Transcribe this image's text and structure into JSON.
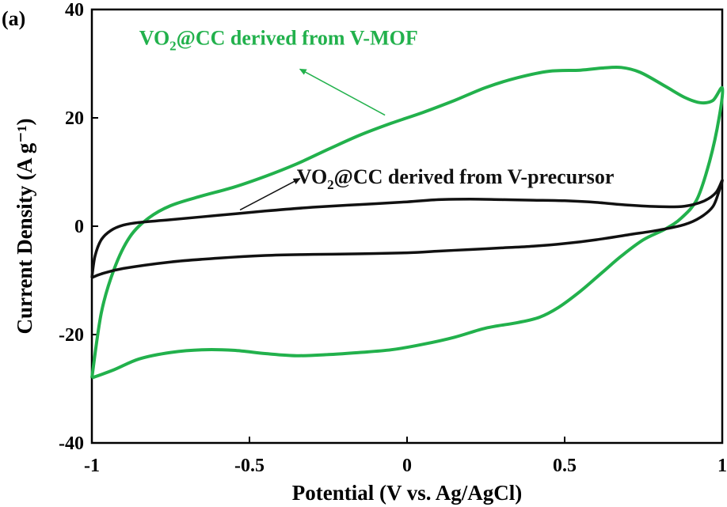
{
  "chart_data": {
    "type": "line",
    "panel_label": "(a)",
    "xlabel": "Potential (V vs. Ag/AgCl)",
    "ylabel": "Current Density (A g⁻¹)",
    "xlim": [
      -1,
      1
    ],
    "ylim": [
      -40,
      40
    ],
    "x_ticks": [
      -1,
      -0.5,
      0,
      0.5,
      1
    ],
    "y_ticks": [
      -40,
      -20,
      0,
      20,
      40
    ],
    "x_tick_labels": [
      "-1",
      "-0.5",
      "0",
      "0.5",
      "1"
    ],
    "y_tick_labels": [
      "-40",
      "-20",
      "0",
      "20",
      "40"
    ],
    "grid": false,
    "series": [
      {
        "name": "VO₂@CC derived from V-MOF",
        "color": "#22b14c",
        "closed": true,
        "points": [
          [
            -1.0,
            -28
          ],
          [
            -0.97,
            -16
          ],
          [
            -0.93,
            -8
          ],
          [
            -0.88,
            -2
          ],
          [
            -0.82,
            1.5
          ],
          [
            -0.75,
            3.8
          ],
          [
            -0.65,
            5.6
          ],
          [
            -0.55,
            7.2
          ],
          [
            -0.45,
            9.2
          ],
          [
            -0.35,
            11.5
          ],
          [
            -0.25,
            14.2
          ],
          [
            -0.15,
            16.8
          ],
          [
            -0.05,
            19.0
          ],
          [
            0.05,
            21.0
          ],
          [
            0.15,
            23.2
          ],
          [
            0.25,
            25.6
          ],
          [
            0.35,
            27.4
          ],
          [
            0.45,
            28.6
          ],
          [
            0.55,
            28.8
          ],
          [
            0.62,
            29.2
          ],
          [
            0.68,
            29.3
          ],
          [
            0.74,
            28.4
          ],
          [
            0.82,
            25.8
          ],
          [
            0.88,
            23.8
          ],
          [
            0.93,
            22.8
          ],
          [
            0.97,
            23.2
          ],
          [
            1.0,
            25.5
          ],
          [
            0.99,
            20
          ],
          [
            0.96,
            12
          ],
          [
            0.92,
            5
          ],
          [
            0.87,
            1.5
          ],
          [
            0.82,
            -0.5
          ],
          [
            0.75,
            -2.5
          ],
          [
            0.68,
            -5.5
          ],
          [
            0.62,
            -8.5
          ],
          [
            0.55,
            -12
          ],
          [
            0.48,
            -15
          ],
          [
            0.42,
            -16.8
          ],
          [
            0.35,
            -17.8
          ],
          [
            0.25,
            -18.8
          ],
          [
            0.15,
            -20.5
          ],
          [
            0.05,
            -21.8
          ],
          [
            -0.05,
            -22.8
          ],
          [
            -0.15,
            -23.3
          ],
          [
            -0.25,
            -23.7
          ],
          [
            -0.35,
            -23.9
          ],
          [
            -0.45,
            -23.5
          ],
          [
            -0.55,
            -22.9
          ],
          [
            -0.65,
            -22.8
          ],
          [
            -0.75,
            -23.3
          ],
          [
            -0.85,
            -24.5
          ],
          [
            -0.93,
            -26.5
          ],
          [
            -1.0,
            -28
          ]
        ]
      },
      {
        "name": "VO₂@CC derived from V-precursor",
        "color": "#111111",
        "closed": true,
        "points": [
          [
            -1.0,
            -9.5
          ],
          [
            -0.99,
            -5.5
          ],
          [
            -0.97,
            -2.5
          ],
          [
            -0.94,
            -0.8
          ],
          [
            -0.9,
            0.2
          ],
          [
            -0.85,
            0.7
          ],
          [
            -0.75,
            1.2
          ],
          [
            -0.6,
            2.0
          ],
          [
            -0.45,
            2.8
          ],
          [
            -0.3,
            3.5
          ],
          [
            -0.15,
            4.0
          ],
          [
            0.0,
            4.5
          ],
          [
            0.1,
            4.9
          ],
          [
            0.2,
            5.0
          ],
          [
            0.3,
            4.9
          ],
          [
            0.4,
            4.8
          ],
          [
            0.5,
            4.7
          ],
          [
            0.6,
            4.4
          ],
          [
            0.7,
            3.9
          ],
          [
            0.8,
            3.6
          ],
          [
            0.88,
            3.7
          ],
          [
            0.94,
            4.6
          ],
          [
            0.98,
            6.2
          ],
          [
            1.0,
            8.5
          ],
          [
            0.99,
            6.5
          ],
          [
            0.97,
            3.6
          ],
          [
            0.93,
            1.6
          ],
          [
            0.88,
            0.3
          ],
          [
            0.8,
            -0.7
          ],
          [
            0.7,
            -1.6
          ],
          [
            0.6,
            -2.5
          ],
          [
            0.5,
            -3.2
          ],
          [
            0.4,
            -3.7
          ],
          [
            0.3,
            -4.0
          ],
          [
            0.2,
            -4.3
          ],
          [
            0.1,
            -4.6
          ],
          [
            0.0,
            -4.9
          ],
          [
            -0.15,
            -5.1
          ],
          [
            -0.3,
            -5.2
          ],
          [
            -0.45,
            -5.4
          ],
          [
            -0.6,
            -5.9
          ],
          [
            -0.75,
            -6.6
          ],
          [
            -0.9,
            -7.8
          ],
          [
            -0.97,
            -8.8
          ],
          [
            -1.0,
            -9.5
          ]
        ]
      }
    ],
    "annotations": [
      {
        "text_main": "VO",
        "text_sub": "2",
        "text_rest": "@CC derived from V-MOF",
        "color": "#22b14c",
        "label_at": [
          -0.85,
          33.5
        ],
        "arrow_from": [
          -0.07,
          20.5
        ],
        "arrow_to": [
          -0.34,
          29.0
        ]
      },
      {
        "text_main": "VO",
        "text_sub": "2",
        "text_rest": "@CC derived from V-precursor",
        "color": "#111111",
        "label_at": [
          -0.35,
          7.9
        ],
        "arrow_from": [
          -0.53,
          3.0
        ],
        "arrow_to": [
          -0.34,
          8.8
        ]
      }
    ]
  }
}
